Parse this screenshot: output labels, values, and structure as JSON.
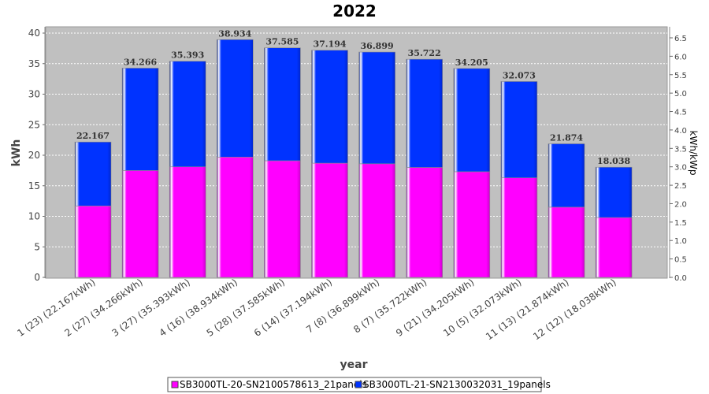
{
  "chart_data": {
    "type": "bar",
    "stacked": true,
    "title": "2022",
    "xlabel": "year",
    "ylabel": "kWh",
    "ylabel_right": "kWh/kWp",
    "ylim": [
      0,
      40
    ],
    "yticks": [
      0,
      5,
      10,
      15,
      20,
      25,
      30,
      35,
      40
    ],
    "ylim_right": [
      0,
      6.5
    ],
    "yticks_right": [
      "0.0",
      "0.5",
      "1.0",
      "1.5",
      "2.0",
      "2.5",
      "3.0",
      "3.5",
      "4.0",
      "4.5",
      "5.0",
      "5.5",
      "6.0",
      "6.5"
    ],
    "grid": true,
    "legend_position": "bottom",
    "categories": [
      "1 (23)  (22.167kWh)",
      "2 (27)  (34.266kWh)",
      "3 (27)  (35.393kWh)",
      "4 (16)  (38.934kWh)",
      "5 (28)  (37.585kWh)",
      "6 (14)  (37.194kWh)",
      "7 (8)  (36.899kWh)",
      "8 (7)  (35.722kWh)",
      "9 (21)  (34.205kWh)",
      "10 (5)  (32.073kWh)",
      "11 (13)  (21.874kWh)",
      "12 (12)  (18.038kWh)"
    ],
    "totals": [
      "22.167",
      "34.266",
      "35.393",
      "38.934",
      "37.585",
      "37.194",
      "36.899",
      "35.722",
      "34.205",
      "32.073",
      "21.874",
      "18.038"
    ],
    "series": [
      {
        "name": "SB3000TL-20-SN2100578613_21panels",
        "color": "#ff00ff",
        "values": [
          11.7,
          17.5,
          18.1,
          19.7,
          19.1,
          18.7,
          18.6,
          18.0,
          17.3,
          16.3,
          11.5,
          9.8
        ]
      },
      {
        "name": "SB3000TL-21-SN2130032031_19panels",
        "color": "#0033ff",
        "values": [
          10.467,
          16.766,
          17.293,
          19.234,
          18.485,
          18.494,
          18.299,
          17.722,
          16.905,
          15.773,
          10.374,
          8.238
        ]
      }
    ]
  }
}
